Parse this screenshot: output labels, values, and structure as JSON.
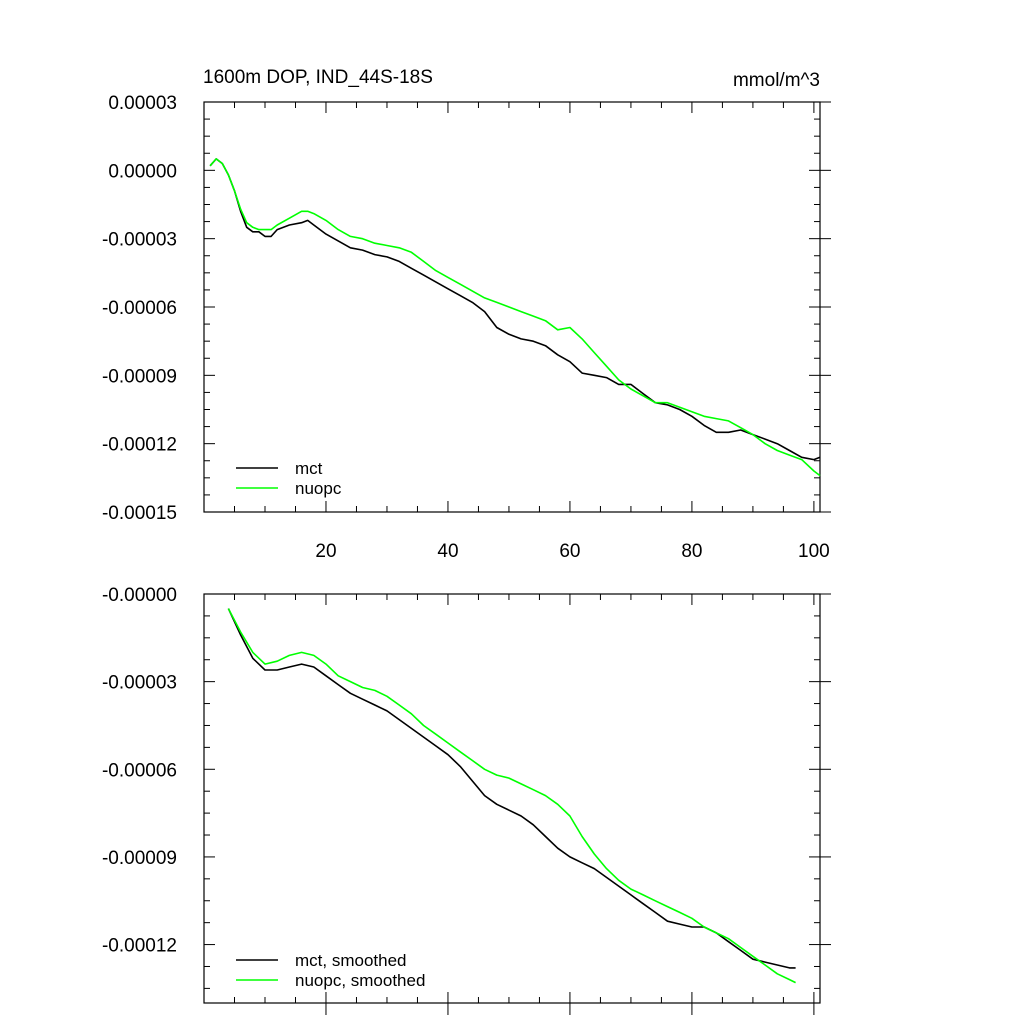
{
  "chart_data": [
    {
      "type": "line",
      "title": "1600m DOP, IND_44S-18S",
      "units": "mmol/m^3",
      "xlim": [
        0,
        101
      ],
      "ylim": [
        -0.00015,
        3e-05
      ],
      "xticks": [
        20,
        40,
        60,
        80,
        100
      ],
      "xtick_labels": [
        "20",
        "40",
        "60",
        "80",
        "100"
      ],
      "yticks": [
        3e-05,
        0.0,
        -3e-05,
        -6e-05,
        -9e-05,
        -0.00012,
        -0.00015
      ],
      "ytick_labels": [
        "0.00003",
        "0.00000",
        "-0.00003",
        "-0.00006",
        "-0.00009",
        "-0.00012",
        "-0.00015"
      ],
      "legend_position": "bottom-left",
      "series": [
        {
          "name": "mct",
          "color": "#000000",
          "x": [
            1,
            2,
            3,
            4,
            5,
            6,
            7,
            8,
            9,
            10,
            11,
            12,
            14,
            16,
            17,
            18,
            20,
            22,
            24,
            26,
            28,
            30,
            32,
            34,
            36,
            38,
            40,
            42,
            44,
            46,
            48,
            50,
            52,
            54,
            56,
            58,
            60,
            62,
            64,
            66,
            68,
            70,
            72,
            74,
            76,
            78,
            80,
            82,
            84,
            86,
            88,
            90,
            92,
            94,
            96,
            98,
            100,
            101
          ],
          "y": [
            2e-06,
            5e-06,
            3e-06,
            -2e-06,
            -9e-06,
            -1.8e-05,
            -2.5e-05,
            -2.7e-05,
            -2.7e-05,
            -2.9e-05,
            -2.9e-05,
            -2.6e-05,
            -2.4e-05,
            -2.3e-05,
            -2.2e-05,
            -2.4e-05,
            -2.8e-05,
            -3.1e-05,
            -3.4e-05,
            -3.5e-05,
            -3.7e-05,
            -3.8e-05,
            -4e-05,
            -4.3e-05,
            -4.6e-05,
            -4.9e-05,
            -5.2e-05,
            -5.5e-05,
            -5.8e-05,
            -6.2e-05,
            -6.9e-05,
            -7.2e-05,
            -7.4e-05,
            -7.5e-05,
            -7.7e-05,
            -8.1e-05,
            -8.4e-05,
            -8.9e-05,
            -9e-05,
            -9.1e-05,
            -9.4e-05,
            -9.4e-05,
            -9.8e-05,
            -0.000102,
            -0.000103,
            -0.000105,
            -0.000108,
            -0.000112,
            -0.000115,
            -0.000115,
            -0.000114,
            -0.000116,
            -0.000118,
            -0.00012,
            -0.000123,
            -0.000126,
            -0.000127,
            -0.000126
          ]
        },
        {
          "name": "nuopc",
          "color": "#00ff00",
          "x": [
            1,
            2,
            3,
            4,
            5,
            6,
            7,
            8,
            9,
            10,
            11,
            12,
            14,
            16,
            17,
            18,
            20,
            22,
            24,
            26,
            28,
            30,
            32,
            34,
            36,
            38,
            40,
            42,
            44,
            46,
            48,
            50,
            52,
            54,
            56,
            58,
            60,
            62,
            64,
            66,
            68,
            70,
            72,
            74,
            76,
            78,
            80,
            82,
            84,
            86,
            88,
            90,
            92,
            94,
            96,
            98,
            100,
            101
          ],
          "y": [
            2e-06,
            5e-06,
            3e-06,
            -2e-06,
            -9e-06,
            -1.7e-05,
            -2.3e-05,
            -2.5e-05,
            -2.6e-05,
            -2.6e-05,
            -2.6e-05,
            -2.4e-05,
            -2.1e-05,
            -1.8e-05,
            -1.8e-05,
            -1.9e-05,
            -2.2e-05,
            -2.6e-05,
            -2.9e-05,
            -3e-05,
            -3.2e-05,
            -3.3e-05,
            -3.4e-05,
            -3.6e-05,
            -4e-05,
            -4.4e-05,
            -4.7e-05,
            -5e-05,
            -5.3e-05,
            -5.6e-05,
            -5.8e-05,
            -6e-05,
            -6.2e-05,
            -6.4e-05,
            -6.6e-05,
            -7e-05,
            -6.9e-05,
            -7.4e-05,
            -8e-05,
            -8.6e-05,
            -9.2e-05,
            -9.6e-05,
            -9.9e-05,
            -0.000102,
            -0.000102,
            -0.000104,
            -0.000106,
            -0.000108,
            -0.000109,
            -0.00011,
            -0.000113,
            -0.000116,
            -0.00012,
            -0.000123,
            -0.000125,
            -0.000127,
            -0.000132,
            -0.000134
          ]
        }
      ]
    },
    {
      "type": "line",
      "title": "",
      "xlim": [
        0,
        101
      ],
      "ylim": [
        -0.00014,
        0.0
      ],
      "xticks": [
        20,
        40,
        60,
        80,
        100
      ],
      "xtick_labels": [
        "",
        "",
        "",
        "",
        ""
      ],
      "yticks": [
        0.0,
        -3e-05,
        -6e-05,
        -9e-05,
        -0.00012
      ],
      "ytick_labels": [
        "-0.00000",
        "-0.00003",
        "-0.00006",
        "-0.00009",
        "-0.00012"
      ],
      "legend_position": "bottom-left",
      "series": [
        {
          "name": "mct, smoothed",
          "color": "#000000",
          "x": [
            4,
            6,
            8,
            10,
            12,
            14,
            16,
            18,
            20,
            22,
            24,
            26,
            28,
            30,
            32,
            34,
            36,
            38,
            40,
            42,
            44,
            46,
            48,
            50,
            52,
            54,
            56,
            58,
            60,
            62,
            64,
            66,
            68,
            70,
            72,
            74,
            76,
            78,
            80,
            82,
            84,
            86,
            88,
            90,
            92,
            94,
            96,
            97
          ],
          "y": [
            -5e-06,
            -1.4e-05,
            -2.2e-05,
            -2.6e-05,
            -2.6e-05,
            -2.5e-05,
            -2.4e-05,
            -2.5e-05,
            -2.8e-05,
            -3.1e-05,
            -3.4e-05,
            -3.6e-05,
            -3.8e-05,
            -4e-05,
            -4.3e-05,
            -4.6e-05,
            -4.9e-05,
            -5.2e-05,
            -5.5e-05,
            -5.9e-05,
            -6.4e-05,
            -6.9e-05,
            -7.2e-05,
            -7.4e-05,
            -7.6e-05,
            -7.9e-05,
            -8.3e-05,
            -8.7e-05,
            -9e-05,
            -9.2e-05,
            -9.4e-05,
            -9.7e-05,
            -0.0001,
            -0.000103,
            -0.000106,
            -0.000109,
            -0.000112,
            -0.000113,
            -0.000114,
            -0.000114,
            -0.000116,
            -0.000119,
            -0.000122,
            -0.000125,
            -0.000126,
            -0.000127,
            -0.000128,
            -0.000128
          ]
        },
        {
          "name": "nuopc, smoothed",
          "color": "#00ff00",
          "x": [
            4,
            6,
            8,
            10,
            12,
            14,
            16,
            18,
            20,
            22,
            24,
            26,
            28,
            30,
            32,
            34,
            36,
            38,
            40,
            42,
            44,
            46,
            48,
            50,
            52,
            54,
            56,
            58,
            60,
            62,
            64,
            66,
            68,
            70,
            72,
            74,
            76,
            78,
            80,
            82,
            84,
            86,
            88,
            90,
            92,
            94,
            96,
            97
          ],
          "y": [
            -5e-06,
            -1.3e-05,
            -2e-05,
            -2.4e-05,
            -2.3e-05,
            -2.1e-05,
            -2e-05,
            -2.1e-05,
            -2.4e-05,
            -2.8e-05,
            -3e-05,
            -3.2e-05,
            -3.3e-05,
            -3.5e-05,
            -3.8e-05,
            -4.1e-05,
            -4.5e-05,
            -4.8e-05,
            -5.1e-05,
            -5.4e-05,
            -5.7e-05,
            -6e-05,
            -6.2e-05,
            -6.3e-05,
            -6.5e-05,
            -6.7e-05,
            -6.9e-05,
            -7.2e-05,
            -7.6e-05,
            -8.3e-05,
            -8.9e-05,
            -9.4e-05,
            -9.8e-05,
            -0.000101,
            -0.000103,
            -0.000105,
            -0.000107,
            -0.000109,
            -0.000111,
            -0.000114,
            -0.000116,
            -0.000118,
            -0.000121,
            -0.000124,
            -0.000127,
            -0.00013,
            -0.000132,
            -0.000133
          ]
        }
      ]
    }
  ]
}
